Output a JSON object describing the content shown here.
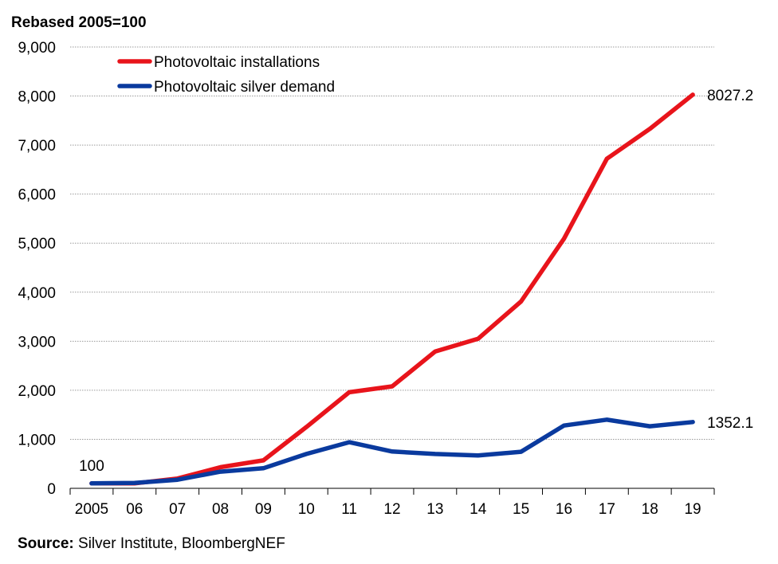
{
  "chart_data": {
    "type": "line",
    "ylabel": "Rebased 2005=100",
    "categories": [
      "2005",
      "06",
      "07",
      "08",
      "09",
      "10",
      "11",
      "12",
      "13",
      "14",
      "15",
      "16",
      "17",
      "18",
      "19"
    ],
    "ylim": [
      0,
      9000
    ],
    "yticks": [
      0,
      1000,
      2000,
      3000,
      4000,
      5000,
      6000,
      7000,
      8000,
      9000
    ],
    "ytick_labels": [
      "0",
      "1,000",
      "2,000",
      "3,000",
      "4,000",
      "5,000",
      "6,000",
      "7,000",
      "8,000",
      "9,000"
    ],
    "grid": true,
    "legend_position": "top-left",
    "series": [
      {
        "name": "Photovoltaic installations",
        "color": "#e8141b",
        "values": [
          100,
          100,
          200,
          430,
          570,
          1250,
          1960,
          2080,
          2790,
          3050,
          3810,
          5090,
          6720,
          7330,
          8027.2
        ],
        "end_label": "8027.2"
      },
      {
        "name": "Photovoltaic silver demand",
        "color": "#0a3a9e",
        "values": [
          100,
          110,
          175,
          340,
          410,
          700,
          940,
          750,
          700,
          670,
          745,
          1280,
          1400,
          1265,
          1352.1
        ],
        "end_label": "1352.1"
      }
    ],
    "annotations": [
      {
        "text": "100",
        "category": "2005",
        "value": 100
      }
    ]
  },
  "source": {
    "label": "Source:",
    "text": "Silver Institute, BloombergNEF"
  }
}
